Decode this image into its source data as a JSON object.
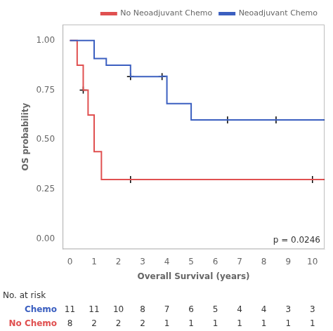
{
  "chart_data": {
    "type": "line",
    "xlabel": "Overall Survival (years)",
    "ylabel": "OS probability",
    "xlim": [
      -0.3,
      10.5
    ],
    "ylim": [
      -0.05,
      1.08
    ],
    "xticks": [
      0,
      1,
      2,
      3,
      4,
      5,
      6,
      7,
      8,
      9,
      10
    ],
    "yticks": [
      {
        "value": 0.0,
        "label": "0.00"
      },
      {
        "value": 0.25,
        "label": "0.25"
      },
      {
        "value": 0.5,
        "label": "0.50"
      },
      {
        "value": 0.75,
        "label": "0.75"
      },
      {
        "value": 1.0,
        "label": "1.00"
      }
    ],
    "grid": false,
    "legend": "upper right",
    "series": [
      {
        "name": "Neoadjuvant Chemo",
        "color": "#3B5FC0",
        "x": [
          0,
          1.0,
          1.0,
          1.5,
          1.5,
          2.5,
          2.5,
          3.8,
          3.8,
          4.0,
          4.0,
          5.0,
          5.0,
          10.5
        ],
        "values": [
          1.0,
          1.0,
          0.909,
          0.909,
          0.875,
          0.875,
          0.818,
          0.818,
          0.82,
          0.82,
          0.682,
          0.682,
          0.6,
          0.6
        ],
        "censored": {
          "x": [
            2.5,
            3.8,
            6.5,
            8.5
          ],
          "values": [
            0.818,
            0.818,
            0.6,
            0.6
          ],
          "color": "#000000",
          "marker": "plus"
        }
      },
      {
        "name": "No Neoadjuvant Chemo",
        "color": "#E05050",
        "x": [
          0,
          0.3,
          0.3,
          0.55,
          0.55,
          0.75,
          0.75,
          1.0,
          1.0,
          1.3,
          1.3,
          10.5
        ],
        "values": [
          1.0,
          1.0,
          0.875,
          0.875,
          0.75,
          0.75,
          0.625,
          0.625,
          0.44,
          0.44,
          0.3,
          0.3
        ],
        "censored": {
          "x": [
            0.55,
            2.5,
            10.0
          ],
          "values": [
            0.75,
            0.3,
            0.3
          ],
          "color": "#000000",
          "marker": "plus"
        }
      }
    ],
    "annotation": "p = 0.0246",
    "risk_table": {
      "title": "No. at risk",
      "x": [
        0,
        1,
        2,
        3,
        4,
        5,
        6,
        7,
        8,
        9,
        10
      ],
      "rows": [
        {
          "name": "Chemo",
          "color": "#3B5FC0",
          "values": [
            11,
            11,
            10,
            8,
            7,
            6,
            5,
            4,
            4,
            3,
            3
          ]
        },
        {
          "name": "No Chemo",
          "color": "#E05050",
          "values": [
            8,
            2,
            2,
            2,
            1,
            1,
            1,
            1,
            1,
            1,
            1
          ]
        }
      ]
    }
  }
}
